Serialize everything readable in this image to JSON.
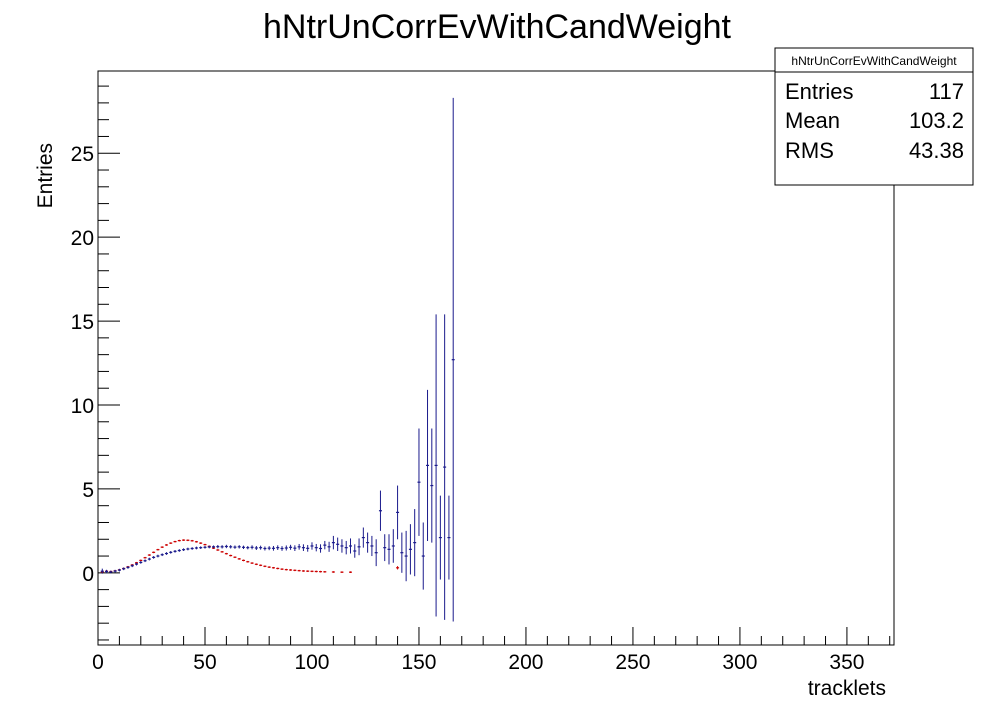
{
  "chart_data": {
    "type": "scatter",
    "title": "hNtrUnCorrEvWithCandWeight",
    "xlabel": "tracklets",
    "ylabel": "Entries",
    "xlim": [
      0,
      372
    ],
    "ylim": [
      -4.3,
      29.9
    ],
    "x_ticks": [
      0,
      50,
      100,
      150,
      200,
      250,
      300,
      350
    ],
    "y_ticks": [
      0,
      5,
      10,
      15,
      20,
      25
    ],
    "grid": false,
    "legend": "none",
    "stats_box": {
      "header": "hNtrUnCorrEvWithCandWeight",
      "rows": [
        {
          "label": "Entries",
          "value": "117"
        },
        {
          "label": "Mean",
          "value": "103.2"
        },
        {
          "label": "RMS",
          "value": "43.38"
        }
      ],
      "placement": "top-right"
    },
    "series": [
      {
        "color": "#cc0000",
        "points": [
          [
            2,
            0.05,
            0.05
          ],
          [
            4,
            0.1,
            0.05
          ],
          [
            6,
            0.08,
            0.05
          ],
          [
            8,
            0.12,
            0.05
          ],
          [
            10,
            0.18,
            0.05
          ],
          [
            12,
            0.26,
            0.05
          ],
          [
            14,
            0.36,
            0.05
          ],
          [
            16,
            0.47,
            0.05
          ],
          [
            18,
            0.6,
            0.05
          ],
          [
            20,
            0.74,
            0.05
          ],
          [
            22,
            0.9,
            0.05
          ],
          [
            24,
            1.06,
            0.05
          ],
          [
            26,
            1.22,
            0.05
          ],
          [
            28,
            1.38,
            0.05
          ],
          [
            30,
            1.53,
            0.05
          ],
          [
            32,
            1.66,
            0.05
          ],
          [
            34,
            1.77,
            0.05
          ],
          [
            36,
            1.86,
            0.05
          ],
          [
            38,
            1.92,
            0.05
          ],
          [
            40,
            1.95,
            0.05
          ],
          [
            42,
            1.94,
            0.05
          ],
          [
            44,
            1.91,
            0.05
          ],
          [
            46,
            1.85,
            0.05
          ],
          [
            48,
            1.77,
            0.05
          ],
          [
            50,
            1.68,
            0.05
          ],
          [
            52,
            1.58,
            0.05
          ],
          [
            54,
            1.47,
            0.05
          ],
          [
            56,
            1.36,
            0.05
          ],
          [
            58,
            1.25,
            0.05
          ],
          [
            60,
            1.14,
            0.05
          ],
          [
            62,
            1.03,
            0.05
          ],
          [
            64,
            0.93,
            0.05
          ],
          [
            66,
            0.83,
            0.05
          ],
          [
            68,
            0.74,
            0.05
          ],
          [
            70,
            0.66,
            0.05
          ],
          [
            72,
            0.58,
            0.05
          ],
          [
            74,
            0.51,
            0.05
          ],
          [
            76,
            0.45,
            0.05
          ],
          [
            78,
            0.39,
            0.05
          ],
          [
            80,
            0.34,
            0.05
          ],
          [
            82,
            0.3,
            0.05
          ],
          [
            84,
            0.26,
            0.05
          ],
          [
            86,
            0.22,
            0.05
          ],
          [
            88,
            0.19,
            0.05
          ],
          [
            90,
            0.17,
            0.05
          ],
          [
            92,
            0.15,
            0.05
          ],
          [
            94,
            0.13,
            0.05
          ],
          [
            96,
            0.11,
            0.05
          ],
          [
            98,
            0.1,
            0.05
          ],
          [
            100,
            0.09,
            0.05
          ],
          [
            102,
            0.08,
            0.05
          ],
          [
            104,
            0.07,
            0.05
          ],
          [
            106,
            0.06,
            0.05
          ],
          [
            110,
            0.05,
            0.05
          ],
          [
            114,
            0.04,
            0.05
          ],
          [
            118,
            0.04,
            0.05
          ],
          [
            140,
            0.3,
            0.1
          ]
        ]
      },
      {
        "color": "#1a1a8c",
        "points": [
          [
            2,
            0.1,
            0.15
          ],
          [
            4,
            0.08,
            0.1
          ],
          [
            6,
            0.05,
            0.08
          ],
          [
            8,
            0.1,
            0.08
          ],
          [
            10,
            0.16,
            0.08
          ],
          [
            12,
            0.24,
            0.08
          ],
          [
            14,
            0.32,
            0.08
          ],
          [
            16,
            0.42,
            0.08
          ],
          [
            18,
            0.52,
            0.08
          ],
          [
            20,
            0.62,
            0.08
          ],
          [
            22,
            0.72,
            0.08
          ],
          [
            24,
            0.82,
            0.08
          ],
          [
            26,
            0.92,
            0.08
          ],
          [
            28,
            1.0,
            0.08
          ],
          [
            30,
            1.08,
            0.08
          ],
          [
            32,
            1.15,
            0.08
          ],
          [
            34,
            1.22,
            0.08
          ],
          [
            36,
            1.28,
            0.08
          ],
          [
            38,
            1.33,
            0.08
          ],
          [
            40,
            1.38,
            0.08
          ],
          [
            42,
            1.42,
            0.08
          ],
          [
            44,
            1.45,
            0.08
          ],
          [
            46,
            1.48,
            0.08
          ],
          [
            48,
            1.5,
            0.08
          ],
          [
            50,
            1.52,
            0.08
          ],
          [
            52,
            1.54,
            0.08
          ],
          [
            54,
            1.55,
            0.08
          ],
          [
            56,
            1.56,
            0.1
          ],
          [
            58,
            1.55,
            0.1
          ],
          [
            60,
            1.57,
            0.1
          ],
          [
            62,
            1.55,
            0.1
          ],
          [
            64,
            1.53,
            0.1
          ],
          [
            66,
            1.55,
            0.1
          ],
          [
            68,
            1.52,
            0.1
          ],
          [
            70,
            1.5,
            0.1
          ],
          [
            72,
            1.52,
            0.12
          ],
          [
            74,
            1.48,
            0.12
          ],
          [
            76,
            1.5,
            0.12
          ],
          [
            78,
            1.45,
            0.12
          ],
          [
            80,
            1.47,
            0.12
          ],
          [
            82,
            1.46,
            0.14
          ],
          [
            84,
            1.5,
            0.14
          ],
          [
            86,
            1.45,
            0.14
          ],
          [
            88,
            1.48,
            0.15
          ],
          [
            90,
            1.52,
            0.15
          ],
          [
            92,
            1.47,
            0.17
          ],
          [
            94,
            1.55,
            0.17
          ],
          [
            96,
            1.5,
            0.2
          ],
          [
            98,
            1.46,
            0.2
          ],
          [
            100,
            1.6,
            0.22
          ],
          [
            102,
            1.5,
            0.22
          ],
          [
            104,
            1.45,
            0.25
          ],
          [
            106,
            1.65,
            0.25
          ],
          [
            108,
            1.55,
            0.3
          ],
          [
            110,
            1.8,
            0.4
          ],
          [
            112,
            1.7,
            0.4
          ],
          [
            114,
            1.6,
            0.4
          ],
          [
            116,
            1.5,
            0.4
          ],
          [
            118,
            1.6,
            0.45
          ],
          [
            120,
            1.3,
            0.4
          ],
          [
            122,
            1.55,
            0.5
          ],
          [
            124,
            2.1,
            0.6
          ],
          [
            126,
            1.8,
            0.6
          ],
          [
            128,
            1.6,
            0.6
          ],
          [
            130,
            1.2,
            0.8
          ],
          [
            132,
            3.7,
            1.2
          ],
          [
            134,
            1.5,
            0.8
          ],
          [
            136,
            1.4,
            0.9
          ],
          [
            138,
            1.6,
            1.0
          ],
          [
            140,
            3.6,
            1.6
          ],
          [
            142,
            1.2,
            1.2
          ],
          [
            144,
            1.0,
            1.5
          ],
          [
            146,
            1.4,
            1.5
          ],
          [
            148,
            1.8,
            2.0
          ],
          [
            150,
            5.4,
            3.2
          ],
          [
            152,
            1.0,
            2.0
          ],
          [
            154,
            6.4,
            4.5
          ],
          [
            156,
            5.2,
            3.4
          ],
          [
            158,
            6.4,
            9.0
          ],
          [
            160,
            2.1,
            2.5
          ],
          [
            162,
            6.3,
            9.1
          ],
          [
            164,
            2.1,
            2.5
          ],
          [
            166,
            12.7,
            15.6
          ]
        ]
      }
    ]
  }
}
